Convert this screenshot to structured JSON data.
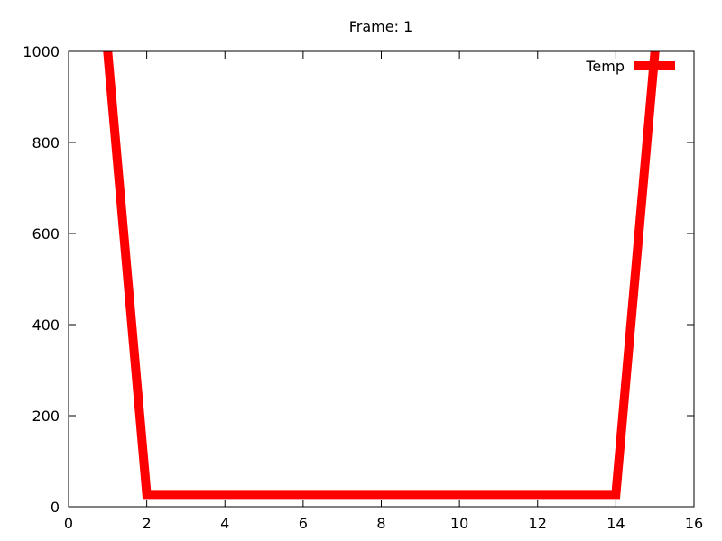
{
  "chart_data": {
    "type": "line",
    "title": "Frame: 1",
    "xlabel": "",
    "ylabel": "",
    "xlim": [
      0,
      16
    ],
    "ylim": [
      0,
      1000
    ],
    "x_ticks": [
      "0",
      "2",
      "4",
      "6",
      "8",
      "10",
      "12",
      "14",
      "16"
    ],
    "y_ticks": [
      "0",
      "200",
      "400",
      "600",
      "800",
      "1000"
    ],
    "grid": false,
    "legend_position": "top-right",
    "series": [
      {
        "name": "Temp",
        "color": "#ff0000",
        "x": [
          1,
          2,
          3,
          4,
          5,
          6,
          7,
          8,
          9,
          10,
          11,
          12,
          13,
          14,
          15
        ],
        "y": [
          1000,
          27,
          27,
          27,
          27,
          27,
          27,
          27,
          27,
          27,
          27,
          27,
          27,
          27,
          1000
        ]
      }
    ]
  }
}
